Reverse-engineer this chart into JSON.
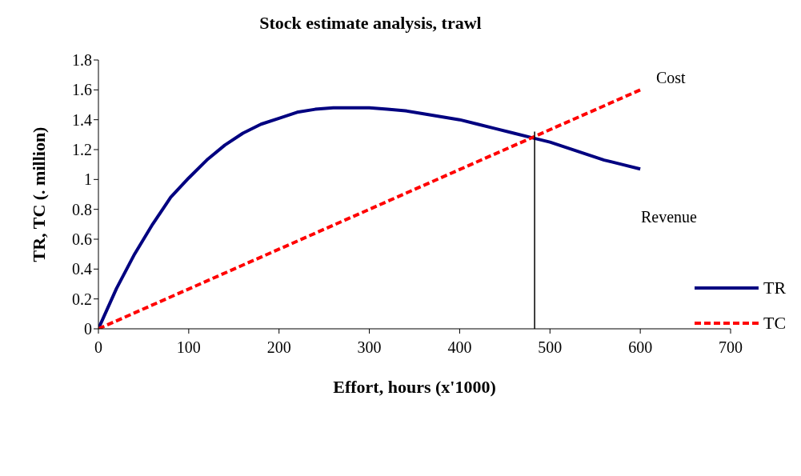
{
  "chart_data": {
    "type": "line",
    "title": "Stock estimate analysis, trawl",
    "xlabel": "Effort, hours (x'1000)",
    "ylabel": "TR, TC (. million)",
    "xlim": [
      0,
      700
    ],
    "xticks": [
      0,
      100,
      200,
      300,
      400,
      500,
      600,
      700
    ],
    "ylim": [
      0,
      1.8
    ],
    "yticks": [
      0,
      0.2,
      0.4,
      0.6,
      0.8,
      1,
      1.2,
      1.4,
      1.6,
      1.8
    ],
    "grid": false,
    "legend": "right",
    "marker": "none",
    "series": [
      {
        "name": "TR",
        "color": "#000080",
        "line_style": "solid",
        "x": [
          0,
          20,
          40,
          60,
          80,
          100,
          120,
          140,
          160,
          180,
          200,
          220,
          240,
          260,
          280,
          300,
          320,
          340,
          360,
          380,
          400,
          420,
          440,
          460,
          480,
          500,
          520,
          540,
          560,
          580,
          600
        ],
        "values": [
          0,
          0.27,
          0.5,
          0.7,
          0.88,
          1.01,
          1.13,
          1.23,
          1.31,
          1.37,
          1.41,
          1.45,
          1.47,
          1.48,
          1.48,
          1.48,
          1.47,
          1.46,
          1.44,
          1.42,
          1.4,
          1.37,
          1.34,
          1.31,
          1.28,
          1.25,
          1.21,
          1.17,
          1.13,
          1.1,
          1.07
        ]
      },
      {
        "name": "TC",
        "color": "#ff0000",
        "line_style": "dashed",
        "x": [
          0,
          600
        ],
        "values": [
          0,
          1.6
        ]
      },
      {
        "color": "#000000",
        "line_style": "solid",
        "x": [
          483,
          483
        ],
        "values": [
          0,
          1.32
        ]
      }
    ],
    "annotations": [
      "Cost",
      "Revenue"
    ]
  }
}
